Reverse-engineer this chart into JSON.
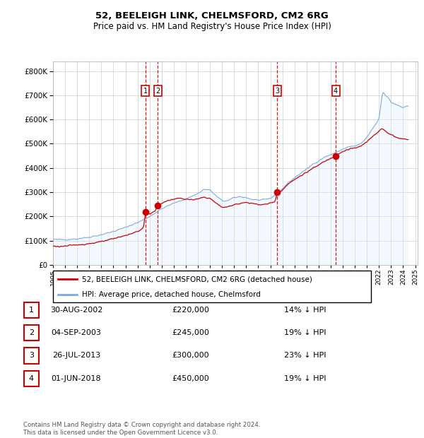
{
  "title1": "52, BEELEIGH LINK, CHELMSFORD, CM2 6RG",
  "title2": "Price paid vs. HM Land Registry's House Price Index (HPI)",
  "background_color": "#ffffff",
  "grid_color": "#cccccc",
  "hpi_color": "#7aaadd",
  "hpi_fill_color": "#ddeeff",
  "price_color": "#cc0000",
  "vline_color": "#cc0000",
  "annotation_box_color": "#cc0000",
  "legend_label_price": "52, BEELEIGH LINK, CHELMSFORD, CM2 6RG (detached house)",
  "legend_label_hpi": "HPI: Average price, detached house, Chelmsford",
  "sale_dates": [
    2002.664,
    2003.674,
    2013.567,
    2018.414
  ],
  "sale_prices": [
    220000,
    245000,
    300000,
    450000
  ],
  "sale_labels": [
    "1",
    "2",
    "3",
    "4"
  ],
  "table_rows": [
    [
      "1",
      "30-AUG-2002",
      "£220,000",
      "14% ↓ HPI"
    ],
    [
      "2",
      "04-SEP-2003",
      "£245,000",
      "19% ↓ HPI"
    ],
    [
      "3",
      "26-JUL-2013",
      "£300,000",
      "23% ↓ HPI"
    ],
    [
      "4",
      "01-JUN-2018",
      "£450,000",
      "19% ↓ HPI"
    ]
  ],
  "footer": "Contains HM Land Registry data © Crown copyright and database right 2024.\nThis data is licensed under the Open Government Licence v3.0.",
  "ylim": [
    0,
    840000
  ],
  "yticks": [
    0,
    100000,
    200000,
    300000,
    400000,
    500000,
    600000,
    700000,
    800000
  ],
  "xlim": [
    1995.0,
    2025.2
  ]
}
